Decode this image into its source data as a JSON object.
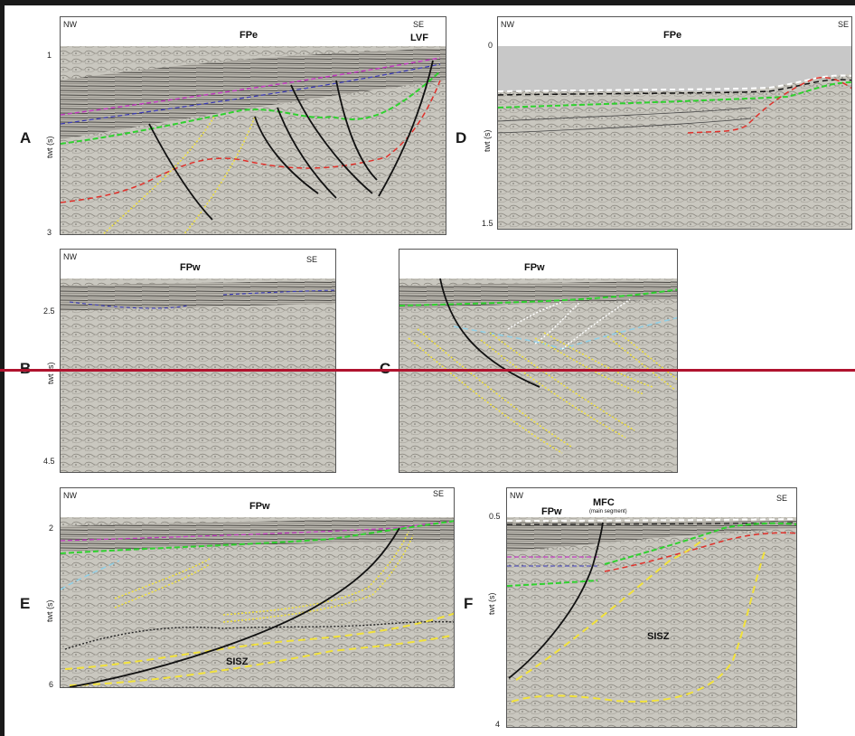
{
  "panels": {
    "A": {
      "label": "A",
      "left_dir": "NW",
      "right_dir": "SE",
      "title": "FPe",
      "annotation": "LVF",
      "ticks": [
        "1",
        "3"
      ],
      "axis_label": "twt (s)"
    },
    "B": {
      "label": "B",
      "left_dir": "NW",
      "right_dir": "SE",
      "title": "FPw",
      "ticks": [
        "2.5",
        "4.5"
      ],
      "axis_label": "twt (s)"
    },
    "C": {
      "label": "C",
      "title": "FPw"
    },
    "D": {
      "label": "D",
      "left_dir": "NW",
      "right_dir": "SE",
      "title": "FPe",
      "ticks": [
        "0",
        "1.5"
      ],
      "axis_label": "twt (s)"
    },
    "E": {
      "label": "E",
      "left_dir": "NW",
      "right_dir": "SE",
      "title": "FPw",
      "annotation": "SISZ",
      "ticks": [
        "2",
        "6"
      ],
      "axis_label": "twt (s)"
    },
    "F": {
      "label": "F",
      "left_dir": "NW",
      "right_dir": "SE",
      "title": "FPw",
      "title2": "MFC",
      "subtitle": "(main segment)",
      "annotation": "SISZ",
      "ticks": [
        "0.5",
        "4"
      ],
      "axis_label": "twt (s)"
    }
  },
  "colors": {
    "horizon_green": "#2fd12f",
    "horizon_red": "#e0302a",
    "horizon_yellow": "#f2e23a",
    "horizon_blue": "#8fd0e8",
    "fault_black": "#111111",
    "separator_red": "#b0132e"
  }
}
